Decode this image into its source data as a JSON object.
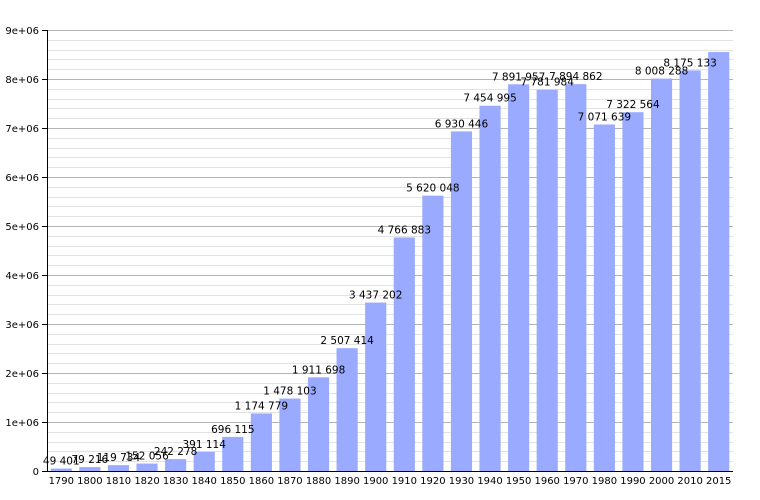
{
  "chart_data": {
    "type": "bar",
    "categories": [
      "1790",
      "1800",
      "1810",
      "1820",
      "1830",
      "1840",
      "1850",
      "1860",
      "1870",
      "1880",
      "1890",
      "1900",
      "1910",
      "1920",
      "1930",
      "1940",
      "1950",
      "1960",
      "1970",
      "1980",
      "1990",
      "2000",
      "2010",
      "2015"
    ],
    "values": [
      49401,
      79216,
      119734,
      152056,
      242278,
      391114,
      696115,
      1174779,
      1478103,
      1911698,
      2507414,
      3437202,
      4766883,
      5620048,
      6930446,
      7454995,
      7891957,
      7781984,
      7894862,
      7071639,
      7322564,
      8008288,
      8175133,
      8550405
    ],
    "data_labels": [
      "49 401",
      "79 216",
      "119 734",
      "152 056",
      "242 278",
      "391 114",
      "696 115",
      "1 174 779",
      "1 478 103",
      "1 911 698",
      "2 507 414",
      "3 437 202",
      "4 766 883",
      "5 620 048",
      "6 930 446",
      "7 454 995",
      "7 891 957",
      "7 781 984",
      "7 894 862",
      "7 071 639",
      "7 322 564",
      "8 008 288",
      "8 175 133",
      ""
    ],
    "y_ticks": [
      "0",
      "1e+06",
      "2e+06",
      "3e+06",
      "4e+06",
      "5e+06",
      "6e+06",
      "7e+06",
      "8e+06",
      "9e+06"
    ],
    "y_tick_values": [
      0,
      1000000,
      2000000,
      3000000,
      4000000,
      5000000,
      6000000,
      7000000,
      8000000,
      9000000
    ],
    "ylim": [
      0,
      9000000
    ],
    "title": "",
    "xlabel": "",
    "ylabel": "",
    "grid": true,
    "colors": {
      "bar": "#99aaff",
      "grid_major": "#b4b4b4",
      "grid_minor": "#e2e2e2",
      "axis": "#000000"
    }
  }
}
